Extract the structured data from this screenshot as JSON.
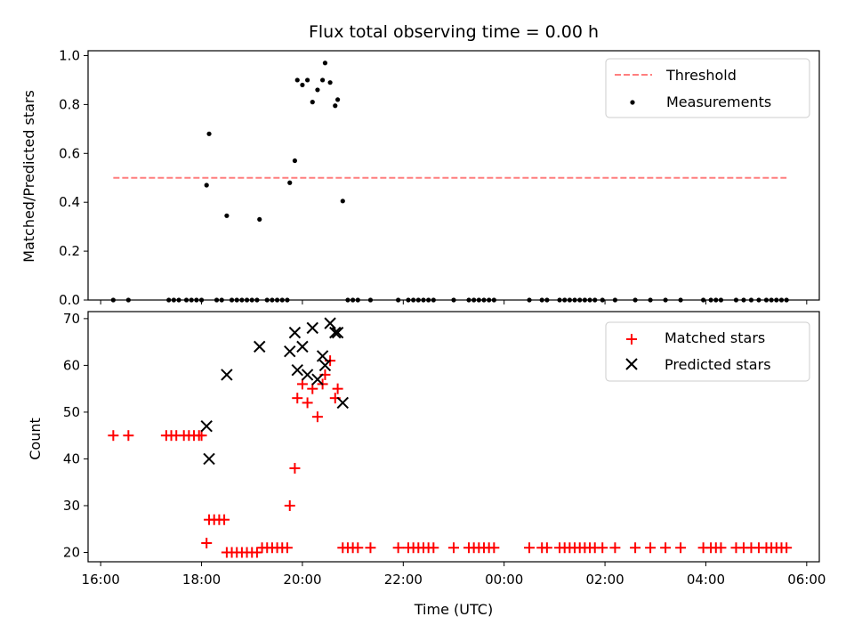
{
  "chart_data": [
    {
      "type": "scatter",
      "title": "Flux total observing time = 0.00 h",
      "ylabel": "Matched/Predicted stars",
      "xlabel": "",
      "xlim_hours": [
        15.75,
        30.25
      ],
      "ylim": [
        0,
        1.02
      ],
      "yticks": [
        0.0,
        0.2,
        0.4,
        0.6,
        0.8,
        1.0
      ],
      "ytick_labels": [
        "0.0",
        "0.2",
        "0.4",
        "0.6",
        "0.8",
        "1.0"
      ],
      "legend_position": "upper right",
      "threshold": {
        "name": "Threshold",
        "value": 0.5,
        "x_range": [
          16.25,
          29.6
        ],
        "color": "#ff7f7f"
      },
      "series": [
        {
          "name": "Measurements",
          "color": "#000000",
          "x": [
            18.1,
            18.15,
            18.5,
            19.15,
            19.75,
            19.85,
            19.9,
            20.0,
            20.1,
            20.2,
            20.3,
            20.4,
            20.45,
            20.55,
            20.65,
            20.7,
            20.8,
            16.25,
            16.55,
            17.35,
            17.45,
            17.55,
            17.7,
            17.8,
            17.9,
            18.0,
            18.3,
            18.4,
            18.6,
            18.7,
            18.8,
            18.9,
            19.0,
            19.1,
            19.3,
            19.4,
            19.5,
            19.6,
            19.7,
            20.9,
            21.0,
            21.1,
            21.35,
            21.9,
            22.1,
            22.2,
            22.3,
            22.4,
            22.5,
            22.6,
            23.0,
            23.3,
            23.4,
            23.5,
            23.6,
            23.7,
            23.8,
            24.5,
            24.75,
            24.85,
            25.1,
            25.2,
            25.3,
            25.4,
            25.5,
            25.6,
            25.7,
            25.8,
            25.95,
            26.2,
            26.6,
            26.9,
            27.2,
            27.5,
            27.95,
            28.1,
            28.2,
            28.3,
            28.6,
            28.75,
            28.9,
            29.05,
            29.2,
            29.3,
            29.4,
            29.5,
            29.6
          ],
          "y": [
            0.47,
            0.68,
            0.345,
            0.33,
            0.48,
            0.57,
            0.9,
            0.88,
            0.9,
            0.81,
            0.86,
            0.9,
            0.97,
            0.89,
            0.795,
            0.82,
            0.405,
            0,
            0,
            0,
            0,
            0,
            0,
            0,
            0,
            0,
            0,
            0,
            0,
            0,
            0,
            0,
            0,
            0,
            0,
            0,
            0,
            0,
            0,
            0,
            0,
            0,
            0,
            0,
            0,
            0,
            0,
            0,
            0,
            0,
            0,
            0,
            0,
            0,
            0,
            0,
            0,
            0,
            0,
            0,
            0,
            0,
            0,
            0,
            0,
            0,
            0,
            0,
            0,
            0,
            0,
            0,
            0,
            0,
            0,
            0,
            0,
            0,
            0,
            0,
            0,
            0,
            0,
            0,
            0,
            0,
            0
          ]
        }
      ]
    },
    {
      "type": "scatter",
      "title": "",
      "xlabel": "Time (UTC)",
      "ylabel": "Count",
      "xlim_hours": [
        15.75,
        30.25
      ],
      "ylim": [
        18,
        71.5
      ],
      "yticks": [
        20,
        30,
        40,
        50,
        60,
        70
      ],
      "ytick_labels": [
        "20",
        "30",
        "40",
        "50",
        "60",
        "70"
      ],
      "xticks_hours": [
        16,
        18,
        20,
        22,
        24,
        26,
        28,
        30
      ],
      "xtick_labels": [
        "16:00",
        "18:00",
        "20:00",
        "22:00",
        "00:00",
        "02:00",
        "04:00",
        "06:00"
      ],
      "legend_position": "upper right",
      "series": [
        {
          "name": "Matched stars",
          "marker": "plus",
          "color": "#ff0000",
          "x": [
            16.25,
            16.55,
            17.3,
            17.4,
            17.5,
            17.65,
            17.75,
            17.85,
            17.95,
            18.0,
            18.1,
            18.15,
            18.25,
            18.35,
            18.45,
            18.5,
            18.6,
            18.7,
            18.8,
            18.9,
            19.0,
            19.1,
            19.2,
            19.3,
            19.4,
            19.5,
            19.6,
            19.7,
            19.75,
            19.85,
            19.9,
            20.0,
            20.1,
            20.2,
            20.3,
            20.4,
            20.45,
            20.55,
            20.65,
            20.7,
            20.8,
            20.9,
            21.0,
            21.1,
            21.35,
            21.9,
            22.1,
            22.2,
            22.3,
            22.4,
            22.5,
            22.6,
            23.0,
            23.3,
            23.4,
            23.5,
            23.6,
            23.7,
            23.8,
            24.5,
            24.75,
            24.85,
            25.1,
            25.2,
            25.3,
            25.4,
            25.5,
            25.6,
            25.7,
            25.8,
            25.95,
            26.2,
            26.6,
            26.9,
            27.2,
            27.5,
            27.95,
            28.1,
            28.2,
            28.3,
            28.6,
            28.75,
            28.9,
            29.05,
            29.2,
            29.3,
            29.4,
            29.5,
            29.6
          ],
          "y": [
            45,
            45,
            45,
            45,
            45,
            45,
            45,
            45,
            45,
            45,
            22,
            27,
            27,
            27,
            27,
            20,
            20,
            20,
            20,
            20,
            20,
            20,
            21,
            21,
            21,
            21,
            21,
            21,
            30,
            38,
            53,
            56,
            52,
            55,
            49,
            56,
            58,
            61,
            53,
            55,
            21,
            21,
            21,
            21,
            21,
            21,
            21,
            21,
            21,
            21,
            21,
            21,
            21,
            21,
            21,
            21,
            21,
            21,
            21,
            21,
            21,
            21,
            21,
            21,
            21,
            21,
            21,
            21,
            21,
            21,
            21,
            21,
            21,
            21,
            21,
            21,
            21,
            21,
            21,
            21,
            21,
            21,
            21,
            21,
            21,
            21,
            21,
            21,
            21
          ]
        },
        {
          "name": "Predicted stars",
          "marker": "x",
          "color": "#000000",
          "x": [
            18.1,
            18.15,
            18.5,
            19.15,
            19.75,
            19.85,
            19.9,
            20.0,
            20.1,
            20.2,
            20.3,
            20.4,
            20.45,
            20.55,
            20.65,
            20.7,
            20.8
          ],
          "y": [
            47,
            40,
            58,
            64,
            63,
            67,
            59,
            64,
            58,
            68,
            57,
            62,
            60,
            69,
            67,
            67,
            52
          ]
        }
      ]
    }
  ]
}
